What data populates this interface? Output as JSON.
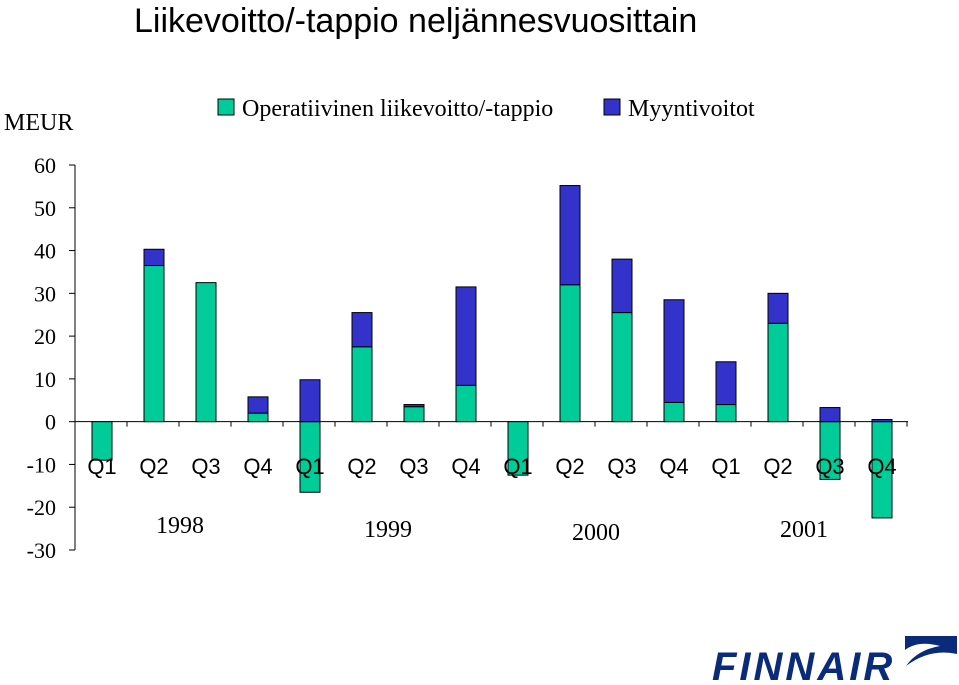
{
  "title": "Liikevoitto/-tappio neljännesvuosittain",
  "unit_label": "MEUR",
  "logo_text": "FINNAIR",
  "colors": {
    "operating": "#00cc99",
    "sales_gains": "#3333cc",
    "logo": "#0a2a7a"
  },
  "chart_data": {
    "type": "bar",
    "stacked": true,
    "categories": [
      "Q1",
      "Q2",
      "Q3",
      "Q4",
      "Q1",
      "Q2",
      "Q3",
      "Q4",
      "Q1",
      "Q2",
      "Q3",
      "Q4",
      "Q1",
      "Q2",
      "Q3",
      "Q4"
    ],
    "years": [
      {
        "label": "1998",
        "start_index": 0,
        "end_index": 3
      },
      {
        "label": "1999",
        "start_index": 4,
        "end_index": 7
      },
      {
        "label": "2000",
        "start_index": 8,
        "end_index": 11
      },
      {
        "label": "2001",
        "start_index": 12,
        "end_index": 15
      }
    ],
    "series": [
      {
        "name": "Operatiivinen liikevoitto/-tappio",
        "color": "#00cc99",
        "values": [
          -9,
          36.5,
          32.5,
          2,
          -16.5,
          17.5,
          3.5,
          8.5,
          -12.5,
          32,
          25.5,
          4.5,
          4,
          23,
          -13.5,
          -22.5
        ]
      },
      {
        "name": "Myyntivoitot",
        "color": "#3333cc",
        "values": [
          0,
          3.8,
          0,
          3.8,
          9.8,
          8,
          0.5,
          23,
          0,
          23.2,
          12.5,
          24,
          10,
          7,
          3.3,
          0.5
        ]
      }
    ],
    "ylabel": "MEUR",
    "ylim": [
      -30,
      60
    ],
    "yticks": [
      60,
      50,
      40,
      30,
      20,
      10,
      0,
      -10,
      -20,
      -30
    ],
    "legend": "top",
    "grid": false
  }
}
